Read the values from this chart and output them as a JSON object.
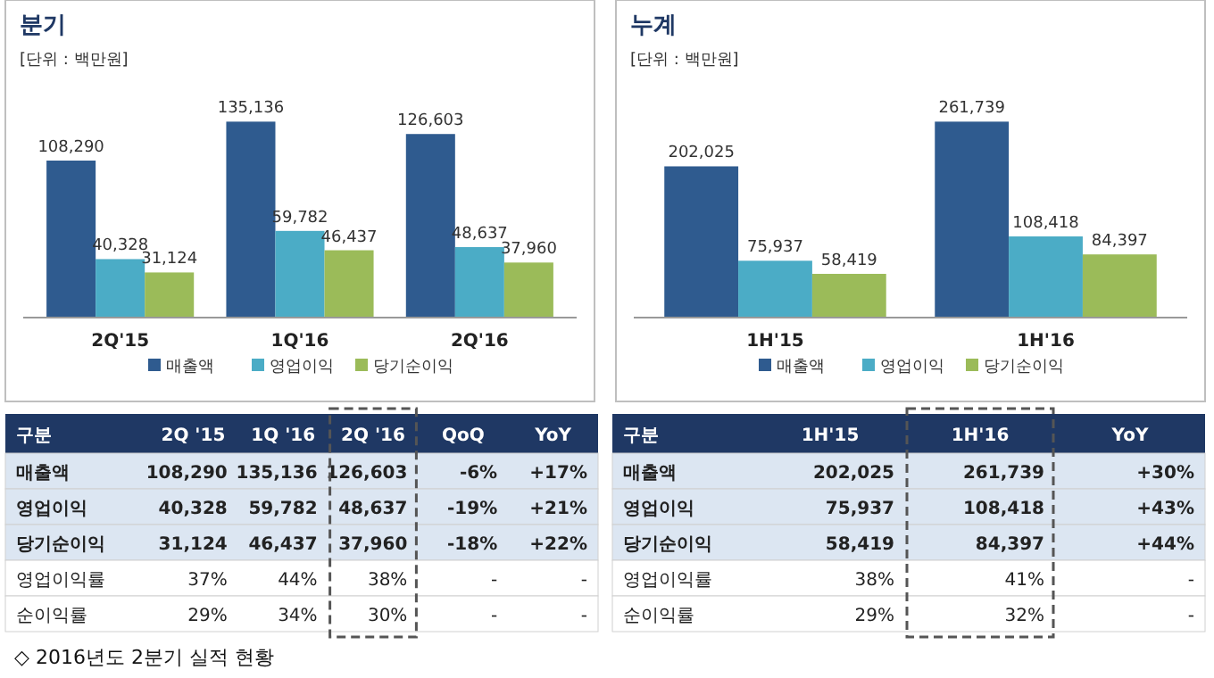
{
  "chart_data": [
    {
      "type": "bar",
      "title": "분기",
      "subtitle": "[단위 : 백만원]",
      "categories": [
        "2Q'15",
        "1Q'16",
        "2Q'16"
      ],
      "series": [
        {
          "name": "매출액",
          "color": "#2f5b8f",
          "values": [
            108290,
            135136,
            126603
          ],
          "value_labels": [
            "108,290",
            "135,136",
            "126,603"
          ]
        },
        {
          "name": "영업이익",
          "color": "#4bacc6",
          "values": [
            40328,
            59782,
            48637
          ],
          "value_labels": [
            "40,328",
            "59,782",
            "48,637"
          ]
        },
        {
          "name": "당기순이익",
          "color": "#9bbb59",
          "values": [
            31124,
            46437,
            37960
          ],
          "value_labels": [
            "31,124",
            "46,437",
            "37,960"
          ]
        }
      ],
      "legend": "bottom"
    },
    {
      "type": "bar",
      "title": "누계",
      "subtitle": "[단위 : 백만원]",
      "categories": [
        "1H'15",
        "1H'16"
      ],
      "series": [
        {
          "name": "매출액",
          "color": "#2f5b8f",
          "values": [
            202025,
            261739
          ],
          "value_labels": [
            "202,025",
            "261,739"
          ]
        },
        {
          "name": "영업이익",
          "color": "#4bacc6",
          "values": [
            75937,
            108418
          ],
          "value_labels": [
            "75,937",
            "108,418"
          ]
        },
        {
          "name": "당기순이익",
          "color": "#9bbb59",
          "values": [
            58419,
            84397
          ],
          "value_labels": [
            "58,419",
            "84,397"
          ]
        }
      ],
      "legend": "bottom"
    },
    {
      "type": "other",
      "categories": [
        "구분",
        "2Q '15",
        "1Q '16",
        "2Q '16",
        "QoQ",
        "YoY"
      ],
      "y_categories": [
        "매출액",
        "영업이익",
        "당기순이익",
        "영업이익률",
        "순이익률"
      ],
      "cell_labels": [
        [
          "108,290",
          "135,136",
          "126,603",
          "-6%",
          "+17%"
        ],
        [
          "40,328",
          "59,782",
          "48,637",
          "-19%",
          "+21%"
        ],
        [
          "31,124",
          "46,437",
          "37,960",
          "-18%",
          "+22%"
        ],
        [
          "37%",
          "44%",
          "38%",
          "-",
          "-"
        ],
        [
          "29%",
          "34%",
          "30%",
          "-",
          "-"
        ]
      ]
    },
    {
      "type": "other",
      "categories": [
        "구분",
        "1H'15",
        "1H'16",
        "YoY"
      ],
      "y_categories": [
        "매출액",
        "영업이익",
        "당기순이익",
        "영업이익률",
        "순이익률"
      ],
      "cell_labels": [
        [
          "202,025",
          "261,739",
          "+30%"
        ],
        [
          "75,937",
          "108,418",
          "+43%"
        ],
        [
          "58,419",
          "84,397",
          "+44%"
        ],
        [
          "38%",
          "41%",
          "-"
        ],
        [
          "29%",
          "32%",
          "-"
        ]
      ],
      "annotations": [
        "◇ 2016년도 2분기 실적 현황"
      ]
    }
  ]
}
